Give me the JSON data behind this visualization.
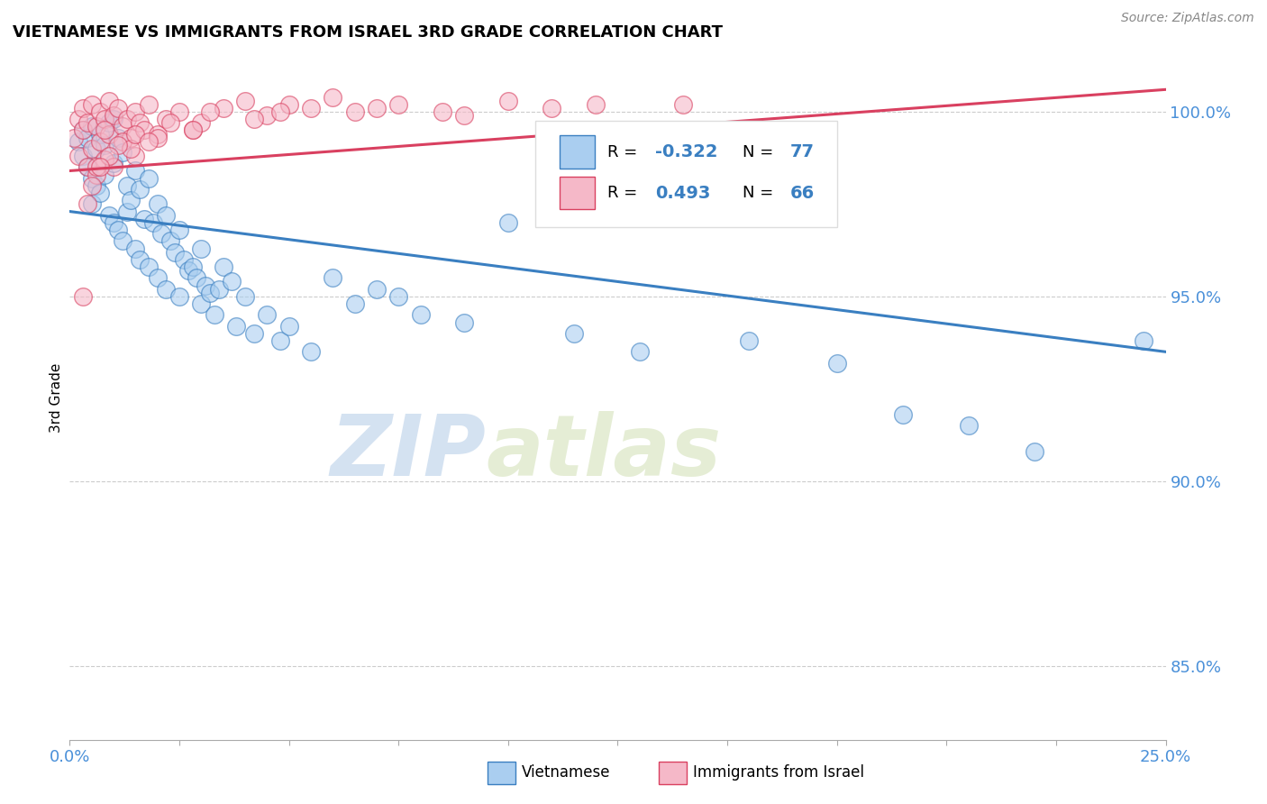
{
  "title": "VIETNAMESE VS IMMIGRANTS FROM ISRAEL 3RD GRADE CORRELATION CHART",
  "source": "Source: ZipAtlas.com",
  "ylabel": "3rd Grade",
  "xlim": [
    0.0,
    25.0
  ],
  "ylim": [
    83.0,
    101.5
  ],
  "yticks": [
    85.0,
    90.0,
    95.0,
    100.0
  ],
  "ytick_labels": [
    "85.0%",
    "90.0%",
    "95.0%",
    "100.0%"
  ],
  "r_blue": "-0.322",
  "n_blue": "77",
  "r_pink": "0.493",
  "n_pink": "66",
  "blue_color": "#aacef0",
  "pink_color": "#f5b8c8",
  "blue_line_color": "#3a7fc1",
  "pink_line_color": "#d94060",
  "watermark_zip": "ZIP",
  "watermark_atlas": "atlas",
  "blue_trend_x0": 0.0,
  "blue_trend_y0": 97.3,
  "blue_trend_x1": 25.0,
  "blue_trend_y1": 93.5,
  "pink_trend_x0": 0.0,
  "pink_trend_y0": 98.4,
  "pink_trend_x1": 25.0,
  "pink_trend_y1": 100.6,
  "blue_scatter_x": [
    0.2,
    0.3,
    0.3,
    0.4,
    0.4,
    0.5,
    0.5,
    0.5,
    0.6,
    0.6,
    0.7,
    0.7,
    0.8,
    0.8,
    0.9,
    0.9,
    1.0,
    1.0,
    1.0,
    1.1,
    1.1,
    1.2,
    1.2,
    1.3,
    1.3,
    1.4,
    1.5,
    1.5,
    1.6,
    1.6,
    1.7,
    1.8,
    1.8,
    1.9,
    2.0,
    2.0,
    2.1,
    2.2,
    2.2,
    2.3,
    2.4,
    2.5,
    2.5,
    2.6,
    2.7,
    2.8,
    2.9,
    3.0,
    3.0,
    3.1,
    3.2,
    3.3,
    3.4,
    3.5,
    3.7,
    3.8,
    4.0,
    4.2,
    4.5,
    4.8,
    5.0,
    5.5,
    6.0,
    6.5,
    7.0,
    7.5,
    8.0,
    9.0,
    10.0,
    11.5,
    13.0,
    15.5,
    17.5,
    19.0,
    20.5,
    22.0,
    24.5
  ],
  "blue_scatter_y": [
    99.2,
    99.5,
    98.8,
    99.3,
    98.5,
    99.6,
    98.2,
    97.5,
    99.0,
    98.0,
    99.4,
    97.8,
    99.1,
    98.3,
    99.7,
    97.2,
    99.8,
    98.6,
    97.0,
    99.3,
    96.8,
    98.9,
    96.5,
    98.0,
    97.3,
    97.6,
    98.4,
    96.3,
    97.9,
    96.0,
    97.1,
    98.2,
    95.8,
    97.0,
    97.5,
    95.5,
    96.7,
    97.2,
    95.2,
    96.5,
    96.2,
    96.8,
    95.0,
    96.0,
    95.7,
    95.8,
    95.5,
    96.3,
    94.8,
    95.3,
    95.1,
    94.5,
    95.2,
    95.8,
    95.4,
    94.2,
    95.0,
    94.0,
    94.5,
    93.8,
    94.2,
    93.5,
    95.5,
    94.8,
    95.2,
    95.0,
    94.5,
    94.3,
    97.0,
    94.0,
    93.5,
    93.8,
    93.2,
    91.8,
    91.5,
    90.8,
    93.8
  ],
  "pink_scatter_x": [
    0.1,
    0.2,
    0.2,
    0.3,
    0.3,
    0.4,
    0.4,
    0.5,
    0.5,
    0.6,
    0.6,
    0.7,
    0.7,
    0.8,
    0.8,
    0.9,
    0.9,
    1.0,
    1.0,
    1.1,
    1.2,
    1.3,
    1.4,
    1.5,
    1.5,
    1.6,
    1.7,
    1.8,
    2.0,
    2.2,
    2.5,
    2.8,
    3.0,
    3.5,
    4.0,
    4.5,
    5.0,
    6.0,
    7.0,
    8.5,
    10.0,
    12.0,
    1.2,
    0.8,
    1.4,
    2.0,
    0.6,
    1.1,
    0.9,
    1.5,
    2.3,
    3.2,
    4.2,
    5.5,
    6.5,
    7.5,
    9.0,
    11.0,
    0.4,
    1.8,
    2.8,
    4.8,
    0.7,
    14.0,
    0.3,
    0.5
  ],
  "pink_scatter_y": [
    99.3,
    99.8,
    98.8,
    100.1,
    99.5,
    99.7,
    98.5,
    100.2,
    99.0,
    99.6,
    98.3,
    100.0,
    99.2,
    99.8,
    98.7,
    100.3,
    99.4,
    99.9,
    98.5,
    100.1,
    99.6,
    99.8,
    99.3,
    100.0,
    98.8,
    99.7,
    99.5,
    100.2,
    99.4,
    99.8,
    100.0,
    99.5,
    99.7,
    100.1,
    100.3,
    99.9,
    100.2,
    100.4,
    100.1,
    100.0,
    100.3,
    100.2,
    99.2,
    99.5,
    99.0,
    99.3,
    98.5,
    99.1,
    98.8,
    99.4,
    99.7,
    100.0,
    99.8,
    100.1,
    100.0,
    100.2,
    99.9,
    100.1,
    97.5,
    99.2,
    99.5,
    100.0,
    98.5,
    100.2,
    95.0,
    98.0
  ]
}
